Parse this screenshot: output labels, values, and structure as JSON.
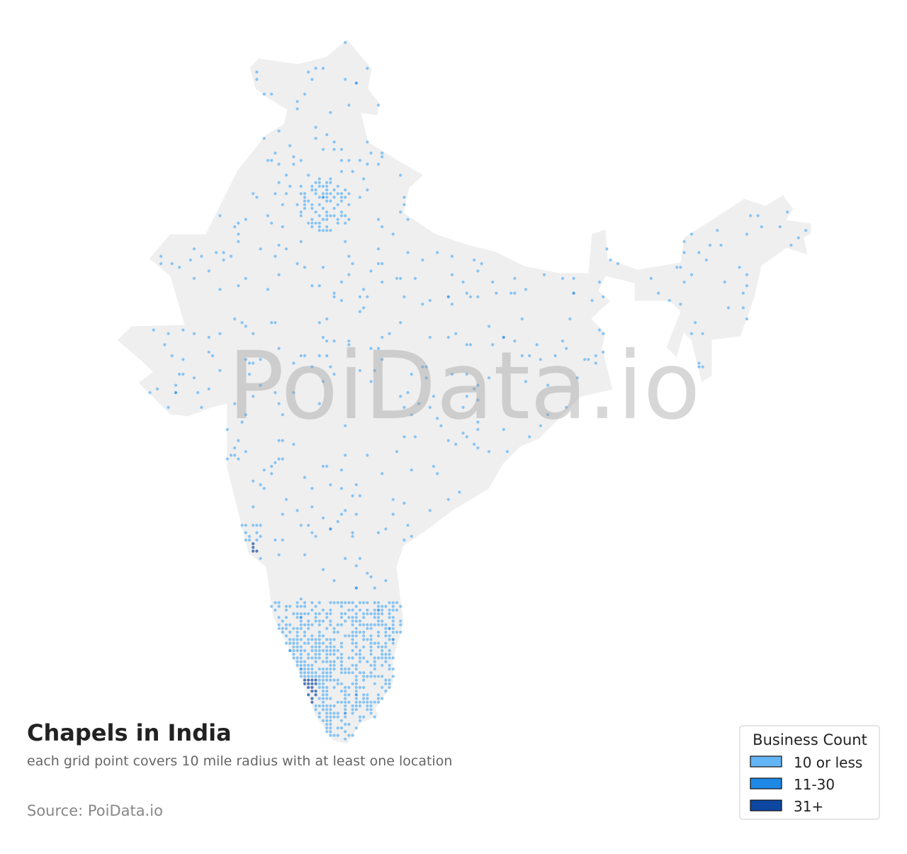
{
  "header": {
    "title": "Chapels in India",
    "subtitle": "each grid point covers 10 mile radius with at least one location",
    "source": "Source: PoiData.io"
  },
  "watermark": "PoiData.io",
  "legend": {
    "title": "Business Count",
    "items": [
      {
        "label": "10 or less",
        "color": "#64b5f6"
      },
      {
        "label": "11-30",
        "color": "#1e88e5"
      },
      {
        "label": "31+",
        "color": "#0d47a1"
      }
    ]
  }
}
